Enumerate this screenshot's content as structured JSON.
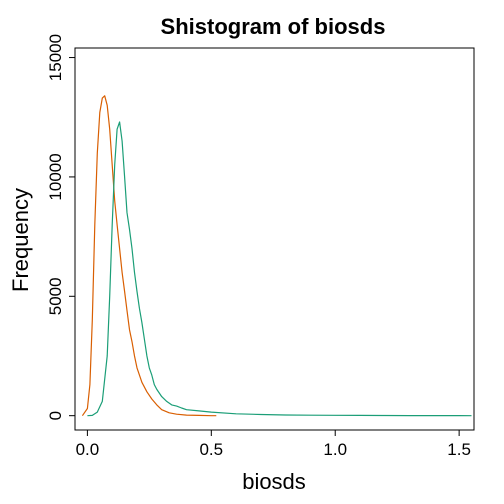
{
  "chart_data": {
    "type": "line",
    "title": "Shistogram of biosds",
    "xlabel": "biosds",
    "ylabel": "Frequency",
    "xlim": [
      -0.05,
      1.56
    ],
    "ylim": [
      -600,
      15400
    ],
    "x_ticks": [
      0.0,
      0.5,
      1.0,
      1.5
    ],
    "x_tick_labels": [
      "0.0",
      "0.5",
      "1.0",
      "1.5"
    ],
    "y_ticks": [
      0,
      5000,
      10000,
      15000
    ],
    "y_tick_labels": [
      "0",
      "5000",
      "10000",
      "15000"
    ],
    "grid": false,
    "legend": "none",
    "series": [
      {
        "color": "#d95f02",
        "x": [
          -0.02,
          0.0,
          0.01,
          0.02,
          0.03,
          0.04,
          0.05,
          0.06,
          0.07,
          0.08,
          0.09,
          0.1,
          0.11,
          0.12,
          0.13,
          0.14,
          0.15,
          0.16,
          0.17,
          0.18,
          0.19,
          0.2,
          0.22,
          0.24,
          0.26,
          0.28,
          0.3,
          0.33,
          0.36,
          0.4,
          0.45,
          0.5,
          0.52
        ],
        "y": [
          0,
          300,
          1300,
          4000,
          8000,
          11000,
          12700,
          13300,
          13400,
          13000,
          12000,
          10500,
          9000,
          8000,
          7000,
          6000,
          5200,
          4400,
          3600,
          3100,
          2500,
          2000,
          1400,
          1000,
          700,
          450,
          250,
          120,
          60,
          25,
          10,
          0,
          0
        ]
      },
      {
        "color": "#1b9e77",
        "x": [
          0.0,
          0.02,
          0.04,
          0.06,
          0.08,
          0.09,
          0.1,
          0.11,
          0.12,
          0.13,
          0.14,
          0.15,
          0.16,
          0.17,
          0.18,
          0.19,
          0.2,
          0.21,
          0.22,
          0.23,
          0.24,
          0.25,
          0.26,
          0.27,
          0.28,
          0.3,
          0.32,
          0.34,
          0.36,
          0.38,
          0.4,
          0.45,
          0.5,
          0.6,
          0.7,
          0.8,
          0.9,
          1.0,
          1.1,
          1.2,
          1.3,
          1.4,
          1.5,
          1.55
        ],
        "y": [
          0,
          10,
          150,
          600,
          2500,
          5000,
          8000,
          10500,
          12000,
          12300,
          11500,
          10000,
          8500,
          7800,
          7000,
          6000,
          5200,
          4500,
          3900,
          3200,
          2500,
          2000,
          1700,
          1300,
          1100,
          800,
          600,
          450,
          400,
          320,
          250,
          200,
          150,
          80,
          50,
          30,
          20,
          15,
          10,
          8,
          5,
          3,
          2,
          0
        ]
      }
    ]
  }
}
